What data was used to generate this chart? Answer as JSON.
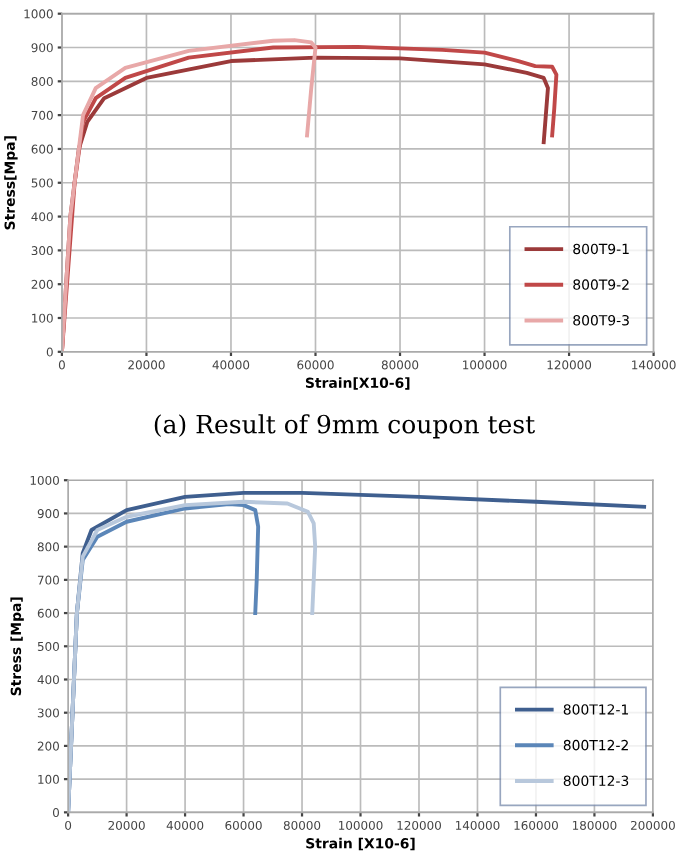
{
  "chart_data": [
    {
      "type": "line",
      "xlabel": "Strain[X10-6]",
      "ylabel": "Stress[Mpa]",
      "annotations": [
        "(a) Result of 9mm coupon test"
      ],
      "xlim": [
        0,
        140000
      ],
      "ylim": [
        0,
        1000
      ],
      "xticks": [
        0,
        20000,
        40000,
        60000,
        80000,
        100000,
        120000,
        140000
      ],
      "yticks": [
        0,
        100,
        200,
        300,
        400,
        500,
        600,
        700,
        800,
        900,
        1000
      ],
      "grid": true,
      "legend": "bottom right",
      "marker": "none",
      "line_style": "solid",
      "series": [
        {
          "name": "800T9-1",
          "color": "#9b3a3a",
          "x": [
            0,
            2000,
            4000,
            6000,
            10000,
            20000,
            40000,
            60000,
            80000,
            100000,
            110000,
            114000,
            115000,
            114500,
            114000
          ],
          "values": [
            0,
            400,
            600,
            680,
            750,
            810,
            860,
            870,
            868,
            850,
            825,
            810,
            780,
            700,
            620
          ]
        },
        {
          "name": "800T9-2",
          "color": "#c04848",
          "x": [
            0,
            3000,
            5000,
            8000,
            15000,
            30000,
            50000,
            70000,
            90000,
            100000,
            108000,
            112000,
            116000,
            117000,
            116500,
            116000
          ],
          "values": [
            0,
            500,
            680,
            750,
            810,
            870,
            900,
            902,
            893,
            885,
            860,
            845,
            843,
            820,
            720,
            640
          ]
        },
        {
          "name": "800T9-3",
          "color": "#e8a8a8",
          "x": [
            0,
            2000,
            5000,
            8000,
            15000,
            30000,
            50000,
            55000,
            59000,
            60000,
            59000,
            58000
          ],
          "values": [
            0,
            400,
            700,
            780,
            840,
            890,
            920,
            922,
            915,
            900,
            780,
            640
          ]
        }
      ]
    },
    {
      "type": "line",
      "xlabel": "Strain [X10-6]",
      "ylabel": "Stress [Mpa]",
      "xlim": [
        0,
        200000
      ],
      "ylim": [
        0,
        1000
      ],
      "xticks": [
        0,
        20000,
        40000,
        60000,
        80000,
        100000,
        120000,
        140000,
        160000,
        180000,
        200000
      ],
      "yticks": [
        0,
        100,
        200,
        300,
        400,
        500,
        600,
        700,
        800,
        900,
        1000
      ],
      "grid": true,
      "legend": "bottom right",
      "marker": "none",
      "line_style": "solid",
      "series": [
        {
          "name": "800T12-1",
          "color": "#3f5f8f",
          "x": [
            0,
            3000,
            5000,
            8000,
            20000,
            40000,
            60000,
            80000,
            120000,
            160000,
            197000
          ],
          "values": [
            0,
            600,
            780,
            850,
            910,
            950,
            962,
            962,
            950,
            935,
            920
          ]
        },
        {
          "name": "800T12-2",
          "color": "#5b86b8",
          "x": [
            0,
            3000,
            5000,
            10000,
            20000,
            40000,
            55000,
            60000,
            64000,
            65000,
            64500,
            64000
          ],
          "values": [
            0,
            600,
            760,
            830,
            875,
            915,
            928,
            925,
            910,
            860,
            700,
            600
          ]
        },
        {
          "name": "800T12-3",
          "color": "#b8c8dc",
          "x": [
            0,
            3000,
            5000,
            10000,
            20000,
            40000,
            60000,
            75000,
            82000,
            84000,
            84500,
            83500
          ],
          "values": [
            0,
            600,
            770,
            850,
            890,
            925,
            935,
            930,
            905,
            870,
            800,
            600
          ]
        }
      ]
    }
  ]
}
